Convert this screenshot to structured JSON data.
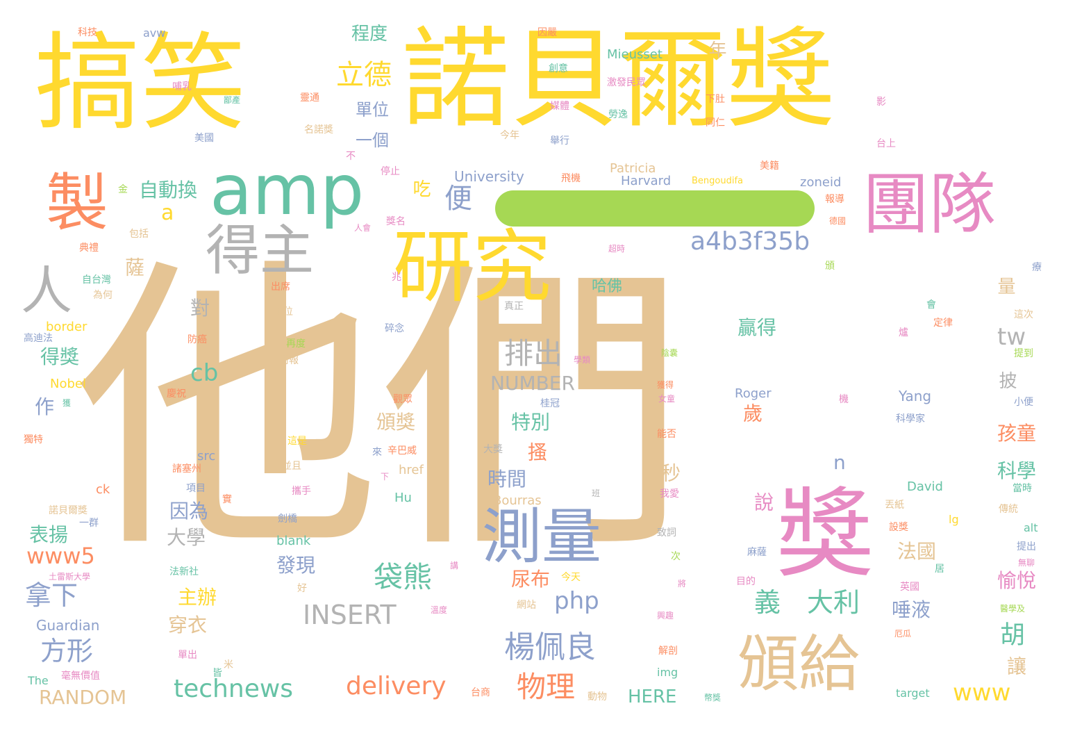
{
  "colors": {
    "yellow": "#FFD92F",
    "tan": "#E5C494",
    "green": "#66C2A5",
    "orange": "#FC8D62",
    "blue": "#8DA0CB",
    "pink": "#E78AC3",
    "lime": "#A6D854",
    "gray": "#B3B3B3"
  },
  "words": {
    "w001": "他們",
    "w002": "諾貝爾獎",
    "w003": "搞笑",
    "w004": "研究",
    "w005": "獎",
    "w006": "團隊",
    "w007": "amp",
    "w008": "頒給",
    "w009": "測量",
    "w010": "製",
    "w011": "得主",
    "w012": "人",
    "w013": "立德",
    "w014": "a4b3f35b",
    "w015": "排出",
    "w016": "楊佩良",
    "w017": "technews",
    "w018": "delivery",
    "w019": "物理",
    "w020": "袋熊",
    "w021": "INSERT",
    "w022": "NUMBER",
    "w023": "RANDOM",
    "w024": "方形",
    "w025": "拿下",
    "w026": "www5",
    "w027": "www",
    "w028": "php",
    "w029": "cb",
    "w030": "tw",
    "w031": "自動換",
    "w032": "程度",
    "w033": "單位",
    "w034": "一個",
    "w035": "便",
    "w036": "吃",
    "w037": "a",
    "w038": "特別",
    "w039": "時間",
    "w040": "尿布",
    "w041": "發現",
    "w042": "主辦",
    "w043": "穿衣",
    "w044": "表揚",
    "w045": "大學",
    "w046": "因為",
    "w047": "頒獎",
    "w048": "法國",
    "w049": "說",
    "w050": "科學",
    "w051": "孩童",
    "w052": "愉悅",
    "w053": "胡",
    "w054": "讓",
    "w055": "唾液",
    "w056": "贏得",
    "w057": "歲",
    "w058": "n",
    "w059": "義",
    "w060": "大利",
    "w061": "得獎",
    "w062": "作",
    "w063": "對",
    "w064": "薩",
    "w065": "秒",
    "w066": "搔",
    "w067": "年",
    "w068": "量",
    "w069": "披",
    "w070": "哈佛",
    "w071": "HERE",
    "w072": "Guardian",
    "w073": "University",
    "w074": "Harvard",
    "w075": "Patricia",
    "w076": "Mieusset",
    "w077": "zoneid",
    "w078": "Bengoudifa",
    "w079": "Nobel",
    "w080": "border",
    "w081": "Roger",
    "w082": "Yang",
    "w083": "David",
    "w084": "Bourras",
    "w085": "Hu",
    "w086": "href",
    "w087": "src",
    "w088": "blank",
    "w089": "img",
    "w090": "target",
    "w091": "The",
    "w092": "ck",
    "w093": "lg",
    "w094": "alt",
    "w095": "avw",
    "w096": "科技",
    "w097": "因嚴",
    "w098": "創意",
    "w099": "哺乳",
    "w100": "鄙產",
    "w101": "靈通",
    "w102": "激發民眾",
    "w103": "媒體",
    "w104": "下肚",
    "w105": "同仁",
    "w106": "勞逸",
    "w107": "美國",
    "w108": "名諾獎",
    "w109": "今年",
    "w110": "舉行",
    "w111": "美籍",
    "w112": "台上",
    "w113": "停止",
    "w114": "飛機",
    "w115": "報導",
    "w116": "金",
    "w117": "包括",
    "w118": "典禮",
    "w119": "人會",
    "w120": "獎名",
    "w121": "德國",
    "w122": "超時",
    "w123": "自台灣",
    "w124": "為何",
    "w125": "兆",
    "w126": "出席",
    "w127": "兩位",
    "w128": "真正",
    "w129": "高迪法",
    "w130": "碎念",
    "w131": "定律",
    "w132": "這次",
    "w133": "提到",
    "w134": "防癌",
    "w135": "再度",
    "w136": "衙報",
    "w137": "學類",
    "w138": "陰囊",
    "w139": "慶祝",
    "w140": "獲",
    "w141": "獨特",
    "w142": "觀眾",
    "w143": "這是",
    "w144": "辛巴威",
    "w145": "來",
    "w146": "諸塞州",
    "w147": "並且",
    "w148": "大獎",
    "w149": "項目",
    "w150": "下",
    "w151": "攜手",
    "w152": "班",
    "w153": "我愛",
    "w154": "諾貝爾獎",
    "w155": "劍橋",
    "w156": "一群",
    "w157": "致詞",
    "w158": "次",
    "w159": "麻薩",
    "w160": "目的",
    "w161": "英國",
    "w162": "法新社",
    "w163": "今天",
    "w164": "網站",
    "w165": "溫度",
    "w166": "興趣",
    "w167": "解剖",
    "w168": "單出",
    "w169": "毫無價值",
    "w170": "動物",
    "w171": "台商",
    "w172": "幣獎",
    "w173": "能否",
    "w174": "女童",
    "w175": "獲得",
    "w176": "桂冠",
    "w177": "小便",
    "w178": "科學家",
    "w179": "當時",
    "w180": "傳統",
    "w181": "提出",
    "w182": "無聊",
    "w183": "醫學及",
    "w184": "厄瓜",
    "w185": "設獎",
    "w186": "丟紙",
    "w187": "土雷斯大學",
    "w188": "不",
    "w189": "影",
    "w190": "好",
    "w191": "會",
    "w192": "爐",
    "w193": "療",
    "w194": "機",
    "w195": "頒",
    "w196": "居",
    "w197": "米",
    "w198": "講",
    "w199": "將",
    "w200": "皆",
    "w201": "實"
  }
}
